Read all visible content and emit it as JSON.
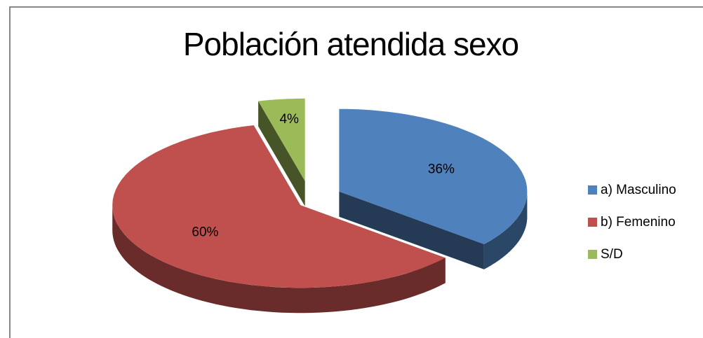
{
  "chart_data": {
    "type": "pie",
    "title": "Población atendida sexo",
    "categories": [
      "a) Masculino",
      "b) Femenino",
      "S/D"
    ],
    "values": [
      36,
      60,
      4
    ],
    "value_labels": [
      "36%",
      "60%",
      "4%"
    ],
    "colors": [
      "#4f81bd",
      "#c0504d",
      "#9bbb59"
    ],
    "legend": "right"
  }
}
